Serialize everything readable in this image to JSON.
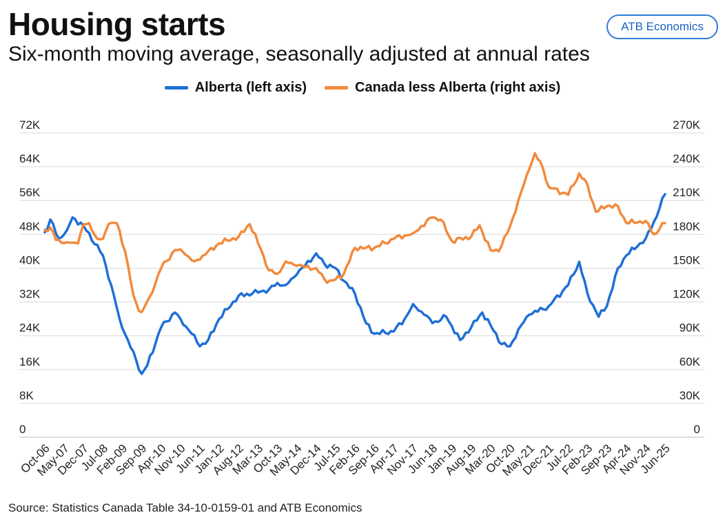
{
  "header": {
    "title": "Housing starts",
    "subtitle": "Six-month moving average, seasonally adjusted at annual rates",
    "badge": "ATB Economics"
  },
  "legend": [
    {
      "label": "Alberta (left axis)",
      "color": "#1f6fd6"
    },
    {
      "label": "Canada less Alberta (right axis)",
      "color": "#f28a3c"
    }
  ],
  "source": "Source: Statistics Canada Table 34-10-0159-01 and ATB Economics",
  "chart_data": {
    "type": "line",
    "title": "Housing starts",
    "subtitle": "Six-month moving average, seasonally adjusted at annual rates",
    "x_start": "Oct-06",
    "x_end": "Jun-25",
    "x_step_months": 1,
    "x_tick_labels": [
      "Oct-06",
      "May-07",
      "Dec-07",
      "Jul-08",
      "Feb-09",
      "Sep-09",
      "Apr-10",
      "Nov-10",
      "Jun-11",
      "Jan-12",
      "Aug-12",
      "Mar-13",
      "Oct-13",
      "May-14",
      "Dec-14",
      "Jul-15",
      "Feb-16",
      "Sep-16",
      "Apr-17",
      "Nov-17",
      "Jun-18",
      "Jan-19",
      "Aug-19",
      "Mar-20",
      "Oct-20",
      "May-21",
      "Dec-21",
      "Jul-22",
      "Feb-23",
      "Sep-23",
      "Apr-24",
      "Nov-24",
      "Jun-25"
    ],
    "y_left": {
      "label": "Alberta",
      "ylim": [
        0,
        72000
      ],
      "ticks": [
        0,
        8000,
        16000,
        24000,
        32000,
        40000,
        48000,
        56000,
        64000,
        72000
      ],
      "tick_labels": [
        "0",
        "8K",
        "16K",
        "24K",
        "32K",
        "40K",
        "48K",
        "56K",
        "64K",
        "72K"
      ]
    },
    "y_right": {
      "label": "Canada less Alberta",
      "ylim": [
        0,
        270000
      ],
      "ticks": [
        0,
        30000,
        60000,
        90000,
        120000,
        150000,
        180000,
        210000,
        240000,
        270000
      ],
      "tick_labels": [
        "0",
        "30K",
        "60K",
        "90K",
        "120K",
        "150K",
        "180K",
        "210K",
        "240K",
        "270K"
      ]
    },
    "grid": true,
    "series": [
      {
        "name": "Alberta (left axis)",
        "axis": "left",
        "color": "#1f6fd6",
        "anchors": [
          [
            "Oct-06",
            48500
          ],
          [
            "Dec-06",
            51500
          ],
          [
            "Mar-07",
            47000
          ],
          [
            "Jun-07",
            49000
          ],
          [
            "Aug-07",
            52000
          ],
          [
            "Dec-07",
            50000
          ],
          [
            "Jul-08",
            43000
          ],
          [
            "Oct-08",
            36000
          ],
          [
            "Jan-09",
            28000
          ],
          [
            "Apr-09",
            23000
          ],
          [
            "Sep-09",
            15000
          ],
          [
            "Nov-09",
            17000
          ],
          [
            "Apr-10",
            26000
          ],
          [
            "Sep-10",
            29500
          ],
          [
            "Nov-10",
            28000
          ],
          [
            "Mar-11",
            24500
          ],
          [
            "Jun-11",
            21500
          ],
          [
            "Sep-11",
            23000
          ],
          [
            "Jan-12",
            28000
          ],
          [
            "Aug-12",
            33500
          ],
          [
            "Jan-13",
            34000
          ],
          [
            "Jul-13",
            35000
          ],
          [
            "Oct-13",
            36500
          ],
          [
            "Jan-14",
            36000
          ],
          [
            "May-14",
            38500
          ],
          [
            "Dec-14",
            43500
          ],
          [
            "Mar-15",
            41000
          ],
          [
            "Jul-15",
            40000
          ],
          [
            "Oct-15",
            37000
          ],
          [
            "Feb-16",
            34000
          ],
          [
            "Jun-16",
            27000
          ],
          [
            "Sep-16",
            24500
          ],
          [
            "Apr-17",
            25000
          ],
          [
            "Aug-17",
            28000
          ],
          [
            "Nov-17",
            31500
          ],
          [
            "Mar-18",
            29000
          ],
          [
            "Jun-18",
            27000
          ],
          [
            "Nov-18",
            28500
          ],
          [
            "Apr-19",
            23000
          ],
          [
            "Aug-19",
            26000
          ],
          [
            "Dec-19",
            29500
          ],
          [
            "Mar-20",
            26500
          ],
          [
            "Jul-20",
            22000
          ],
          [
            "Oct-20",
            21500
          ],
          [
            "Jan-21",
            25500
          ],
          [
            "May-21",
            29000
          ],
          [
            "Dec-21",
            31000
          ],
          [
            "Jul-22",
            36000
          ],
          [
            "Nov-22",
            41500
          ],
          [
            "Feb-23",
            34000
          ],
          [
            "Jun-23",
            28500
          ],
          [
            "Sep-23",
            31000
          ],
          [
            "Jan-24",
            40000
          ],
          [
            "Apr-24",
            43000
          ],
          [
            "Nov-24",
            47000
          ],
          [
            "Feb-25",
            51000
          ],
          [
            "Jun-25",
            57500
          ]
        ]
      },
      {
        "name": "Canada less Alberta (right axis)",
        "axis": "right",
        "color": "#f28a3c",
        "anchors": [
          [
            "Oct-06",
            184000
          ],
          [
            "Dec-06",
            186000
          ],
          [
            "Feb-07",
            175000
          ],
          [
            "Jun-07",
            173000
          ],
          [
            "Oct-07",
            172000
          ],
          [
            "Dec-07",
            189000
          ],
          [
            "Feb-08",
            190000
          ],
          [
            "May-08",
            176000
          ],
          [
            "Jul-08",
            176000
          ],
          [
            "Sep-08",
            189000
          ],
          [
            "Dec-08",
            190000
          ],
          [
            "Mar-09",
            165000
          ],
          [
            "Jun-09",
            126000
          ],
          [
            "Aug-09",
            112000
          ],
          [
            "Sep-09",
            111000
          ],
          [
            "Dec-09",
            125000
          ],
          [
            "Apr-10",
            150000
          ],
          [
            "Sep-10",
            166000
          ],
          [
            "Dec-10",
            164000
          ],
          [
            "Apr-11",
            156000
          ],
          [
            "Aug-11",
            162000
          ],
          [
            "Jan-12",
            172000
          ],
          [
            "Aug-12",
            178000
          ],
          [
            "Dec-12",
            189000
          ],
          [
            "Apr-13",
            167000
          ],
          [
            "Jul-13",
            148000
          ],
          [
            "Oct-13",
            145000
          ],
          [
            "Jan-14",
            156000
          ],
          [
            "May-14",
            152000
          ],
          [
            "Dec-14",
            150000
          ],
          [
            "Apr-15",
            137000
          ],
          [
            "Jul-15",
            140000
          ],
          [
            "Oct-15",
            145000
          ],
          [
            "Feb-16",
            168000
          ],
          [
            "Jun-16",
            168000
          ],
          [
            "Sep-16",
            168000
          ],
          [
            "Apr-17",
            176000
          ],
          [
            "Aug-17",
            179000
          ],
          [
            "Nov-17",
            181000
          ],
          [
            "Jun-18",
            195000
          ],
          [
            "Sep-18",
            193000
          ],
          [
            "Jan-19",
            174000
          ],
          [
            "Aug-19",
            178000
          ],
          [
            "Nov-19",
            188000
          ],
          [
            "Mar-20",
            166000
          ],
          [
            "Jun-20",
            165000
          ],
          [
            "Oct-20",
            187000
          ],
          [
            "Jan-21",
            210000
          ],
          [
            "May-21",
            238000
          ],
          [
            "Jul-21",
            252000
          ],
          [
            "Oct-21",
            238000
          ],
          [
            "Dec-21",
            222000
          ],
          [
            "Jul-22",
            215000
          ],
          [
            "Nov-22",
            234000
          ],
          [
            "Feb-23",
            224000
          ],
          [
            "May-23",
            200000
          ],
          [
            "Sep-23",
            205000
          ],
          [
            "Jan-24",
            205000
          ],
          [
            "Apr-24",
            190000
          ],
          [
            "Nov-24",
            192000
          ],
          [
            "Feb-25",
            180000
          ],
          [
            "Jun-25",
            190000
          ]
        ]
      }
    ]
  }
}
